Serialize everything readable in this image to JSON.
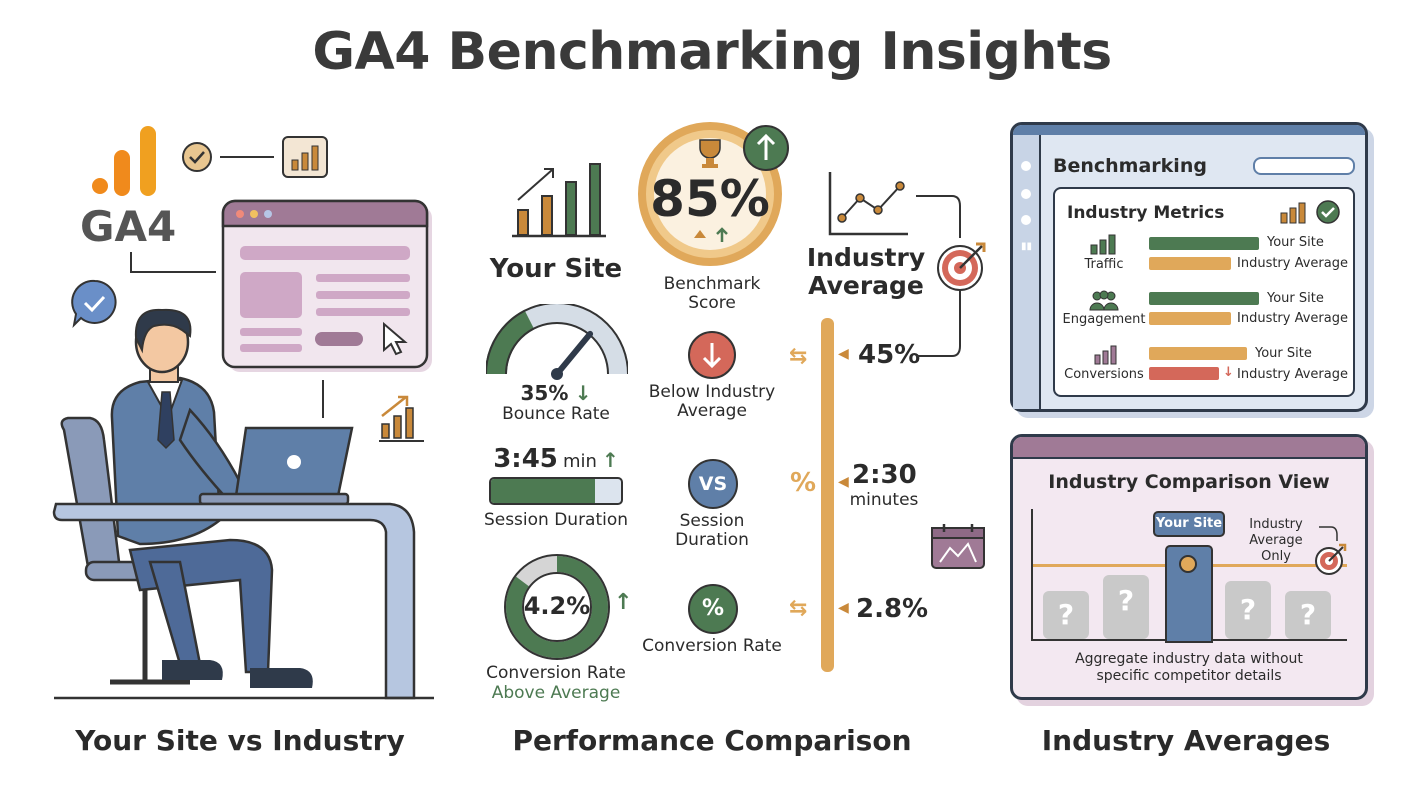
{
  "title": "GA4 Benchmarking Insights",
  "ga4_logo_text": "GA4",
  "captions": {
    "left": "Your Site vs Industry",
    "middle": "Performance Comparison",
    "right": "Industry Averages"
  },
  "your_site": {
    "heading": "Your Site",
    "bounce_value": "35%",
    "bounce_label": "Bounce Rate",
    "session_value": "3:45",
    "session_unit": "min",
    "session_label": "Session Duration",
    "session_fill_fraction": 0.8,
    "conversion_value": "4.2%",
    "conversion_label": "Conversion Rate",
    "conversion_note": "Above Average",
    "conversion_ring_fraction": 0.85,
    "bounce_gauge_fraction": 0.35
  },
  "benchmark": {
    "score": "85%",
    "label": "Benchmark Score",
    "below_label": "Below Industry Average",
    "vs_text": "VS",
    "session_label": "Session Duration",
    "percent_symbol": "%",
    "conversion_label": "Conversion Rate"
  },
  "industry_average": {
    "heading": "Industry Average",
    "bounce_value": "45%",
    "session_value": "2:30",
    "session_unit": "minutes",
    "conversion_value": "2.8%",
    "mid_symbol": "%"
  },
  "benchmarking_panel": {
    "title": "Benchmarking",
    "subtitle": "Industry Metrics",
    "rows": [
      {
        "label": "Traffic",
        "your_site": "Your Site",
        "industry": "Industry Average",
        "your_color": "#4d7a52",
        "industry_color": "#e0a85a"
      },
      {
        "label": "Engagement",
        "your_site": "Your Site",
        "industry": "Industry Average",
        "your_color": "#4d7a52",
        "industry_color": "#e0a85a"
      },
      {
        "label": "Conversions",
        "your_site": "Your Site",
        "industry": "Industry Average",
        "your_color": "#e0a85a",
        "industry_color": "#d4685a"
      }
    ]
  },
  "comparison_panel": {
    "title": "Industry Comparison View",
    "your_site_tag": "Your Site",
    "industry_only": "Industry Average Only",
    "question_mark": "?",
    "footer": "Aggregate industry data without specific competitor details"
  },
  "colors": {
    "green": "#4d7a52",
    "orange": "#e0a85a",
    "gold": "#f0a020",
    "red": "#d4685a",
    "purple": "#8e6a86",
    "blue": "#5f7fa8"
  }
}
